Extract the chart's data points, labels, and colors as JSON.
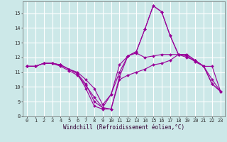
{
  "title": "",
  "xlabel": "Windchill (Refroidissement éolien,°C)",
  "ylabel": "",
  "background_color": "#cce8e8",
  "grid_color": "#ffffff",
  "line_color": "#990099",
  "x": [
    0,
    1,
    2,
    3,
    4,
    5,
    6,
    7,
    8,
    9,
    10,
    11,
    12,
    13,
    14,
    15,
    16,
    17,
    18,
    19,
    20,
    21,
    22,
    23
  ],
  "series": [
    [
      11.4,
      11.4,
      11.6,
      11.6,
      11.5,
      11.2,
      10.9,
      9.9,
      8.7,
      8.5,
      8.5,
      10.7,
      12.1,
      12.4,
      13.9,
      15.5,
      15.1,
      13.5,
      12.2,
      12.2,
      11.8,
      11.4,
      10.2,
      9.7
    ],
    [
      11.4,
      11.4,
      11.6,
      11.6,
      11.5,
      11.2,
      11.0,
      10.5,
      9.9,
      8.8,
      9.5,
      11.0,
      12.1,
      12.3,
      12.0,
      12.1,
      12.2,
      12.2,
      12.2,
      12.0,
      11.8,
      11.4,
      11.4,
      9.7
    ],
    [
      11.4,
      11.4,
      11.6,
      11.6,
      11.4,
      11.1,
      10.8,
      10.1,
      9.3,
      8.6,
      8.5,
      10.5,
      10.8,
      11.0,
      11.2,
      11.5,
      11.6,
      11.8,
      12.2,
      12.1,
      11.7,
      11.4,
      10.5,
      9.7
    ],
    [
      11.4,
      11.4,
      11.6,
      11.6,
      11.5,
      11.2,
      10.9,
      10.2,
      9.0,
      8.6,
      9.5,
      11.5,
      12.1,
      12.4,
      13.9,
      15.5,
      15.1,
      13.5,
      12.2,
      12.2,
      11.8,
      11.4,
      10.2,
      9.7
    ]
  ],
  "ylim": [
    8,
    15.8
  ],
  "xlim": [
    -0.5,
    23.5
  ],
  "yticks": [
    8,
    9,
    10,
    11,
    12,
    13,
    14,
    15
  ],
  "xticks": [
    0,
    1,
    2,
    3,
    4,
    5,
    6,
    7,
    8,
    9,
    10,
    11,
    12,
    13,
    14,
    15,
    16,
    17,
    18,
    19,
    20,
    21,
    22,
    23
  ],
  "font_family": "monospace",
  "label_fontsize": 5.5,
  "tick_fontsize": 5.0,
  "linewidth": 0.8,
  "markersize": 2.0
}
